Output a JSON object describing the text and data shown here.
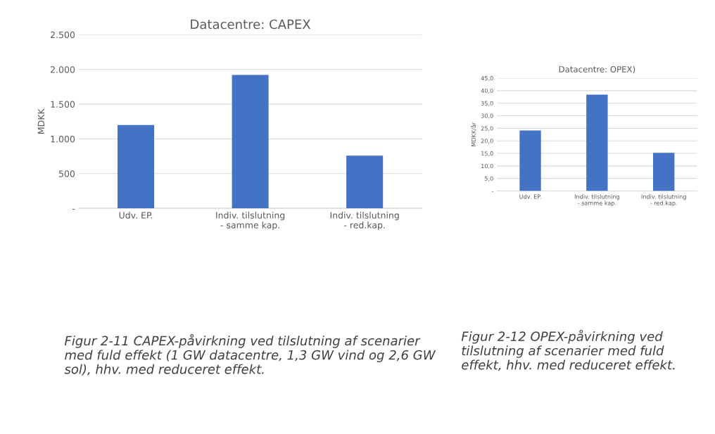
{
  "chart_data": [
    {
      "type": "bar",
      "title": "Datacentre: CAPEX",
      "ylabel": "MDKK",
      "categories": [
        "Udv. EP.",
        "Indiv. tilslutning\n- samme kap.",
        "Indiv. tilslutning\n- red.kap."
      ],
      "color": "#4472c4",
      "values": [
        1200,
        1920,
        760
      ],
      "ylim": [
        0,
        2500
      ],
      "yticks": [
        {
          "value": 0,
          "label": "-"
        },
        {
          "value": 500,
          "label": "500"
        },
        {
          "value": 1000,
          "label": "1.000"
        },
        {
          "value": 1500,
          "label": "1.500"
        },
        {
          "value": 2000,
          "label": "2.000"
        },
        {
          "value": 2500,
          "label": "2.500"
        }
      ],
      "grid": "y",
      "annotations": [
        "Figur 2-11 CAPEX-påvirkning ved tilslutning af scenarier med fuld effekt (1 GW datacentre, 1,3 GW vind og 2,6 GW sol), hhv. med reduceret effekt."
      ]
    },
    {
      "type": "bar",
      "title": "Datacentre: OPEX)",
      "ylabel": "MDKK/år",
      "categories": [
        "Udv. EP.",
        "Indiv. tilslutning\n- samme kap.",
        "Indiv. tilslutning\n- red.kap."
      ],
      "color": "#4472c4",
      "values": [
        24.1,
        38.4,
        15.2
      ],
      "ylim": [
        0,
        45
      ],
      "yticks": [
        {
          "value": 0,
          "label": "-"
        },
        {
          "value": 5,
          "label": "5,0"
        },
        {
          "value": 10,
          "label": "10,0"
        },
        {
          "value": 15,
          "label": "15,0"
        },
        {
          "value": 20,
          "label": "20,0"
        },
        {
          "value": 25,
          "label": "25,0"
        },
        {
          "value": 30,
          "label": "30,0"
        },
        {
          "value": 35,
          "label": "35,0"
        },
        {
          "value": 40,
          "label": "40,0"
        },
        {
          "value": 45,
          "label": "45,0"
        }
      ],
      "grid": "y",
      "annotations": [
        "Figur 2-12 OPEX-påvirkning ved tilslutning af scenarier med fuld effekt, hhv. med reduceret effekt."
      ]
    }
  ]
}
